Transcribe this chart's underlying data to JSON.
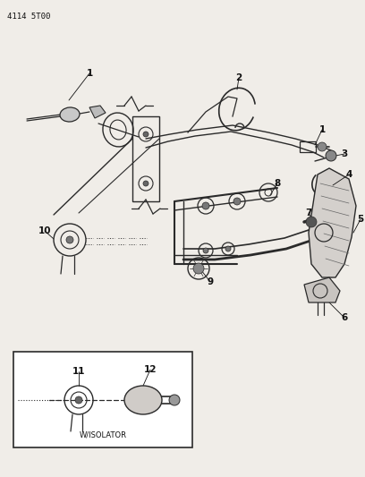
{
  "title": "4114 5T00",
  "bg_color": "#f0ede8",
  "line_color": "#2a2a2a",
  "label_color": "#111111",
  "fig_w": 4.08,
  "fig_h": 5.33,
  "dpi": 100
}
